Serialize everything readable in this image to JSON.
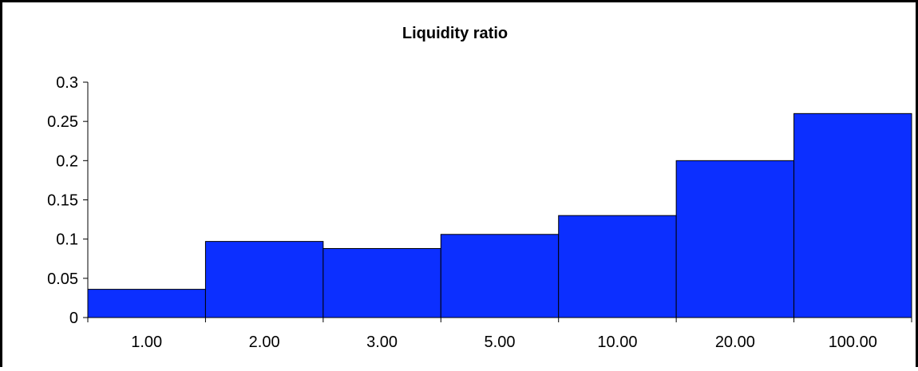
{
  "chart_data": {
    "type": "bar",
    "title": "Liquidity ratio",
    "xlabel": "",
    "ylabel": "",
    "categories": [
      "1.00",
      "2.00",
      "3.00",
      "5.00",
      "10.00",
      "20.00",
      "100.00"
    ],
    "values": [
      0.036,
      0.097,
      0.088,
      0.106,
      0.13,
      0.2,
      0.26
    ],
    "ylim": [
      0,
      0.3
    ],
    "yticks": [
      "0",
      "0.05",
      "0.1",
      "0.15",
      "0.2",
      "0.25",
      "0.3"
    ],
    "bar_color": "#0c2fff",
    "grid": false,
    "legend": "none"
  }
}
